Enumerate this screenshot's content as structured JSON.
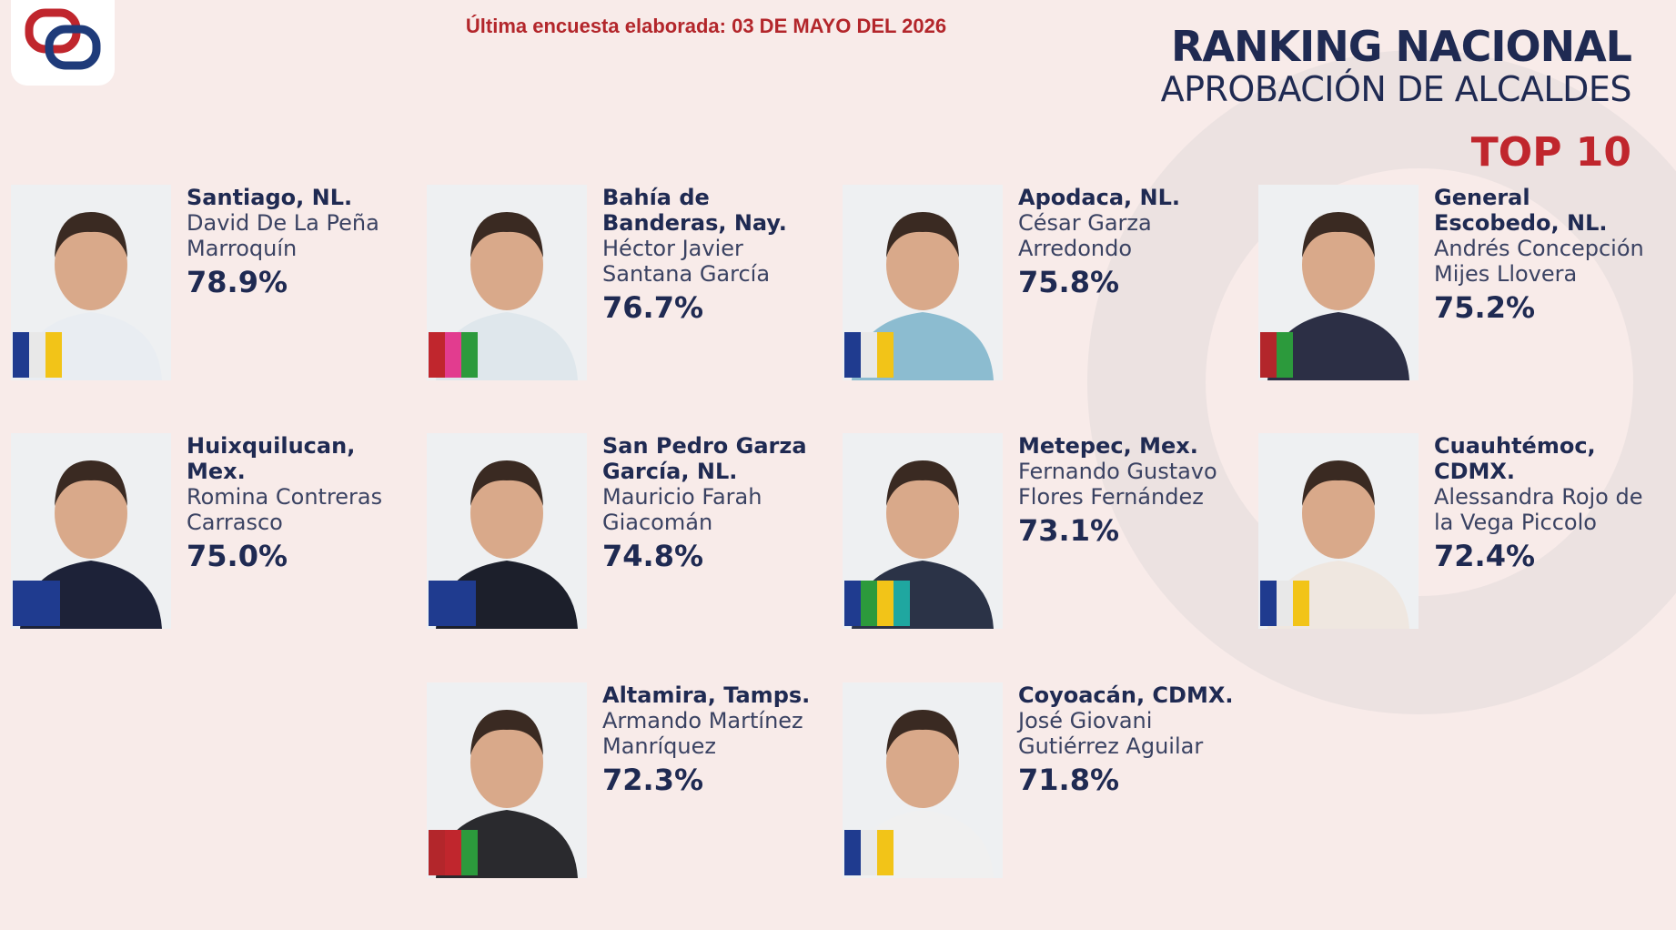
{
  "header": {
    "survey_date": "Última encuesta elaborada: 03 DE MAYO DEL 2026",
    "title": "RANKING NACIONAL",
    "subtitle": "APROBACIÓN DE ALCALDES",
    "badge": "TOP 10"
  },
  "ranking": [
    {
      "location": "Santiago, NL.",
      "name": "David De La Peña Marroquín",
      "approval": "78.9%"
    },
    {
      "location": "Bahía de Banderas, Nay.",
      "name": "Héctor Javier Santana García",
      "approval": "76.7%"
    },
    {
      "location": "Apodaca, NL.",
      "name": "César Garza Arredondo",
      "approval": "75.8%"
    },
    {
      "location": "General Escobedo, NL.",
      "name": "Andrés Concepción Mijes Llovera",
      "approval": "75.2%"
    },
    {
      "location": "Huixquilucan, Mex.",
      "name": "Romina Contreras Carrasco",
      "approval": "75.0%"
    },
    {
      "location": "San Pedro Garza García, NL.",
      "name": "Mauricio Farah Giacomán",
      "approval": "74.8%"
    },
    {
      "location": "Metepec, Mex.",
      "name": "Fernando Gustavo Flores Fernández",
      "approval": "73.1%"
    },
    {
      "location": "Cuauhtémoc, CDMX.",
      "name": "Alessandra Rojo de la Vega Piccolo",
      "approval": "72.4%"
    },
    {
      "location": "Altamira, Tamps.",
      "name": "Armando Martínez Manríquez",
      "approval": "72.3%"
    },
    {
      "location": "Coyoacán, CDMX.",
      "name": "José Giovani Gutiérrez Aguilar",
      "approval": "71.8%"
    }
  ]
}
